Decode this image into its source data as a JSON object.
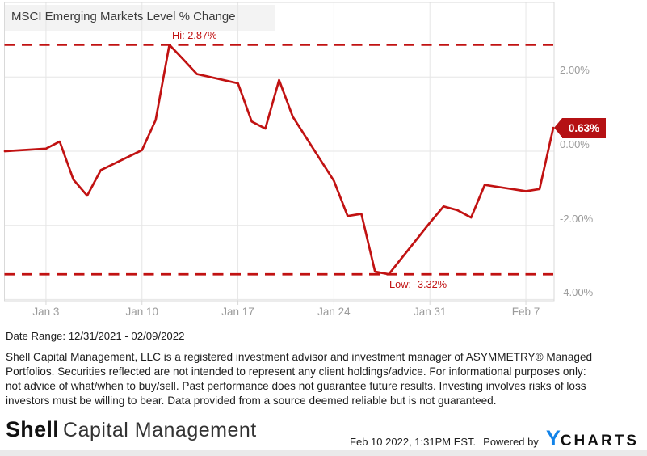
{
  "colors": {
    "accent_red": "#c11212",
    "badge_bg": "#b51114",
    "badge_text": "#ffffff",
    "axis_label": "#9b9b9b",
    "grid": "#e6e6e6",
    "plot_border": "#d9d9d9",
    "title_bg": "#f3f3f3",
    "title_text": "#3b3b3b",
    "body_text": "#1d1d1d",
    "ycharts_blue": "#1283e8"
  },
  "chart_data": {
    "type": "line",
    "title": "MSCI Emerging Markets Level % Change",
    "x_axis_type": "date",
    "grid": true,
    "legend": "none",
    "ylim": [
      -4,
      4
    ],
    "xlim": [
      "2021-12-31",
      "2022-02-09"
    ],
    "unit": "%",
    "hi": {
      "label": "Hi: 2.87%",
      "value": 2.87
    },
    "low": {
      "label": "Low: -3.32%",
      "value": -3.32
    },
    "last": {
      "label": "0.63%",
      "value": 0.63
    },
    "y_ticks": [
      {
        "label": "2.00%",
        "value": 2
      },
      {
        "label": "0.00%",
        "value": 0
      },
      {
        "label": "-2.00%",
        "value": -2
      },
      {
        "label": "-4.00%",
        "value": -4
      }
    ],
    "x_ticks": [
      {
        "label": "Jan 3",
        "date": "2022-01-03"
      },
      {
        "label": "Jan 10",
        "date": "2022-01-10"
      },
      {
        "label": "Jan 17",
        "date": "2022-01-17"
      },
      {
        "label": "Jan 24",
        "date": "2022-01-24"
      },
      {
        "label": "Jan 31",
        "date": "2022-01-31"
      },
      {
        "label": "Feb 7",
        "date": "2022-02-07"
      }
    ],
    "points": [
      {
        "date": "2021-12-31",
        "value": 0.0
      },
      {
        "date": "2022-01-03",
        "value": 0.07
      },
      {
        "date": "2022-01-04",
        "value": 0.26
      },
      {
        "date": "2022-01-05",
        "value": -0.77
      },
      {
        "date": "2022-01-06",
        "value": -1.2
      },
      {
        "date": "2022-01-07",
        "value": -0.51
      },
      {
        "date": "2022-01-10",
        "value": 0.03
      },
      {
        "date": "2022-01-11",
        "value": 0.84
      },
      {
        "date": "2022-01-12",
        "value": 2.87
      },
      {
        "date": "2022-01-13",
        "value": 2.48
      },
      {
        "date": "2022-01-14",
        "value": 2.08
      },
      {
        "date": "2022-01-17",
        "value": 1.83
      },
      {
        "date": "2022-01-18",
        "value": 0.8
      },
      {
        "date": "2022-01-19",
        "value": 0.61
      },
      {
        "date": "2022-01-20",
        "value": 1.92
      },
      {
        "date": "2022-01-21",
        "value": 0.93
      },
      {
        "date": "2022-01-24",
        "value": -0.8
      },
      {
        "date": "2022-01-25",
        "value": -1.75
      },
      {
        "date": "2022-01-26",
        "value": -1.69
      },
      {
        "date": "2022-01-27",
        "value": -3.25
      },
      {
        "date": "2022-01-28",
        "value": -3.32
      },
      {
        "date": "2022-01-31",
        "value": -1.93
      },
      {
        "date": "2022-02-01",
        "value": -1.49
      },
      {
        "date": "2022-02-02",
        "value": -1.59
      },
      {
        "date": "2022-02-03",
        "value": -1.79
      },
      {
        "date": "2022-02-04",
        "value": -0.91
      },
      {
        "date": "2022-02-07",
        "value": -1.08
      },
      {
        "date": "2022-02-08",
        "value": -1.02
      },
      {
        "date": "2022-02-09",
        "value": 0.63
      }
    ]
  },
  "footer": {
    "date_range": "Date Range: 12/31/2021 - 02/09/2022",
    "disclaimer_lines": [
      "Shell Capital Management, LLC is a registered investment advisor and investment manager of ASYMMETRY® Managed",
      "Portfolios. Securities reflected are not intended to represent any client holdings/advice. For informational purposes only:",
      "not advice of what/when to buy/sell. Past performance does not guarantee future results. Investing involves risks of loss",
      "investors must be willing to bear. Data provided from a source deemed reliable but is not guaranteed."
    ],
    "logo_bold": "Shell",
    "logo_light": "Capital Management",
    "timestamp": "Feb 10 2022, 1:31PM EST.",
    "powered_by": "Powered by",
    "ycharts_y": "Y",
    "ycharts_rest": "CHARTS"
  }
}
